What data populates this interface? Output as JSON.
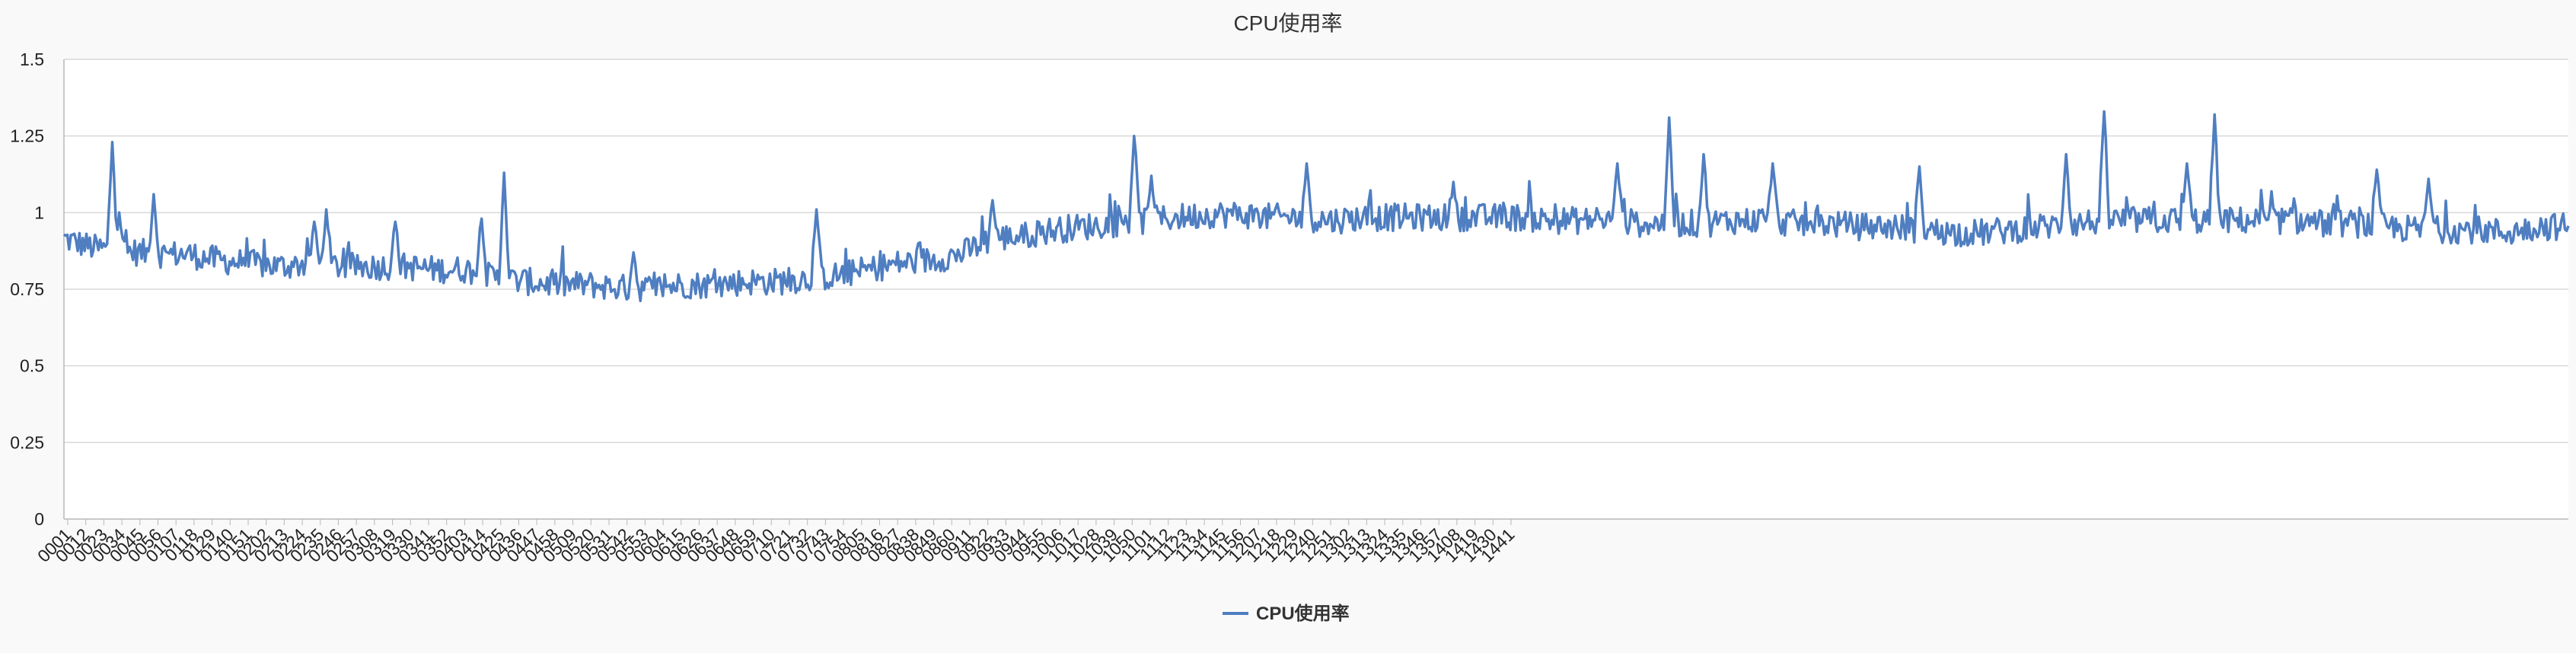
{
  "colors": {
    "series": "#4f7ec1",
    "grid": "#d8d8d8",
    "axis": "#b8b8b8",
    "background": "#f9f9fa",
    "plot_background": "#ffffff"
  },
  "chart_data": {
    "type": "line",
    "title": "CPU使用率",
    "legend": {
      "position": "bottom-center",
      "entries": [
        "CPU使用率"
      ]
    },
    "grid": true,
    "ylim": [
      0,
      1.5
    ],
    "yticks": [
      "0",
      "0.25",
      "0.5",
      "0.75",
      "1",
      "1.25",
      "1.5"
    ],
    "xticks": [
      "0001",
      "0012",
      "0023",
      "0034",
      "0045",
      "0056",
      "0107",
      "0118",
      "0129",
      "0140",
      "0151",
      "0202",
      "0213",
      "0224",
      "0235",
      "0246",
      "0257",
      "0308",
      "0319",
      "0330",
      "0341",
      "0352",
      "0403",
      "0414",
      "0425",
      "0436",
      "0447",
      "0458",
      "0509",
      "0520",
      "0531",
      "0542",
      "0553",
      "0604",
      "0615",
      "0626",
      "0637",
      "0648",
      "0659",
      "0710",
      "0721",
      "0732",
      "0743",
      "0754",
      "0805",
      "0816",
      "0827",
      "0838",
      "0849",
      "0860",
      "0911",
      "0922",
      "0933",
      "0944",
      "0955",
      "1006",
      "1017",
      "1028",
      "1039",
      "1050",
      "1101",
      "1112",
      "1123",
      "1134",
      "1145",
      "1156",
      "1207",
      "1218",
      "1229",
      "1240",
      "1251",
      "1302",
      "1313",
      "1324",
      "1335",
      "1346",
      "1357",
      "1408",
      "1419",
      "1430",
      "1441"
    ],
    "point_count": 1452,
    "series": [
      {
        "name": "CPU使用率",
        "segment_means": [
          0.91,
          0.88,
          0.87,
          0.86,
          0.86,
          0.84,
          0.83,
          0.82,
          0.83,
          0.82,
          0.82,
          0.82,
          0.81,
          0.81,
          0.78,
          0.77,
          0.76,
          0.76,
          0.75,
          0.75,
          0.76,
          0.76,
          0.77,
          0.77,
          0.78,
          0.79,
          0.81,
          0.83,
          0.84,
          0.86,
          0.91,
          0.92,
          0.94,
          0.95,
          0.96,
          0.97,
          0.98,
          0.99,
          0.99,
          0.98,
          0.98,
          0.97,
          0.98,
          0.98,
          0.98,
          0.98,
          0.98,
          0.98,
          0.97,
          0.97,
          0.97,
          0.96,
          0.96,
          0.96,
          0.97,
          0.97,
          0.96,
          0.96,
          0.95,
          0.95,
          0.94,
          0.93,
          0.93,
          0.94,
          0.95,
          0.96,
          0.97,
          0.97,
          0.97,
          0.97,
          0.97,
          0.97,
          0.97,
          0.96,
          0.96,
          0.95,
          0.94,
          0.94,
          0.94,
          0.93,
          0.95
        ],
        "peaks": [
          [
            28,
            1.23
          ],
          [
            32,
            1.0
          ],
          [
            52,
            1.06
          ],
          [
            145,
            0.97
          ],
          [
            152,
            1.01
          ],
          [
            192,
            0.97
          ],
          [
            242,
            0.98
          ],
          [
            255,
            1.13
          ],
          [
            330,
            0.87
          ],
          [
            436,
            1.01
          ],
          [
            538,
            1.04
          ],
          [
            620,
            1.25
          ],
          [
            630,
            1.12
          ],
          [
            720,
            1.16
          ],
          [
            805,
            1.1
          ],
          [
            900,
            1.16
          ],
          [
            930,
            1.31
          ],
          [
            950,
            1.19
          ],
          [
            990,
            1.16
          ],
          [
            1075,
            1.15
          ],
          [
            1160,
            1.19
          ],
          [
            1182,
            1.33
          ],
          [
            1230,
            1.16
          ],
          [
            1246,
            1.32
          ],
          [
            1340,
            1.14
          ],
          [
            1370,
            1.11
          ]
        ]
      }
    ]
  }
}
